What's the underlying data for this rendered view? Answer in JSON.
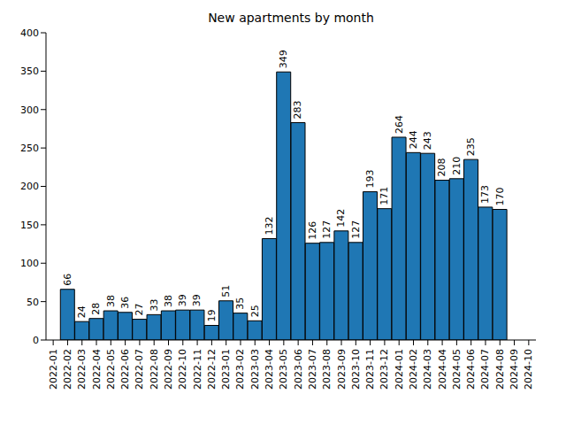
{
  "chart_data": {
    "type": "bar",
    "title": "New apartments by month",
    "categories": [
      "2022-01",
      "2022-02",
      "2022-03",
      "2022-04",
      "2022-05",
      "2022-06",
      "2022-07",
      "2022-08",
      "2022-09",
      "2022-10",
      "2022-11",
      "2022-12",
      "2023-01",
      "2023-02",
      "2023-03",
      "2023-04",
      "2023-05",
      "2023-06",
      "2023-07",
      "2023-08",
      "2023-09",
      "2023-10",
      "2023-11",
      "2023-12",
      "2024-01",
      "2024-02",
      "2024-03",
      "2024-04",
      "2024-05",
      "2024-06",
      "2024-07",
      "2024-08",
      "2024-09",
      "2024-10"
    ],
    "values": [
      null,
      66,
      24,
      28,
      38,
      36,
      27,
      33,
      38,
      39,
      39,
      19,
      51,
      35,
      25,
      132,
      349,
      283,
      126,
      127,
      142,
      127,
      193,
      171,
      264,
      244,
      243,
      208,
      210,
      235,
      173,
      170,
      null,
      null
    ],
    "color": "#1f77b4",
    "ylim": [
      0,
      400
    ],
    "yticks": [
      0,
      50,
      100,
      150,
      200,
      250,
      300,
      350,
      400
    ],
    "data_labels": true,
    "grid": false
  }
}
